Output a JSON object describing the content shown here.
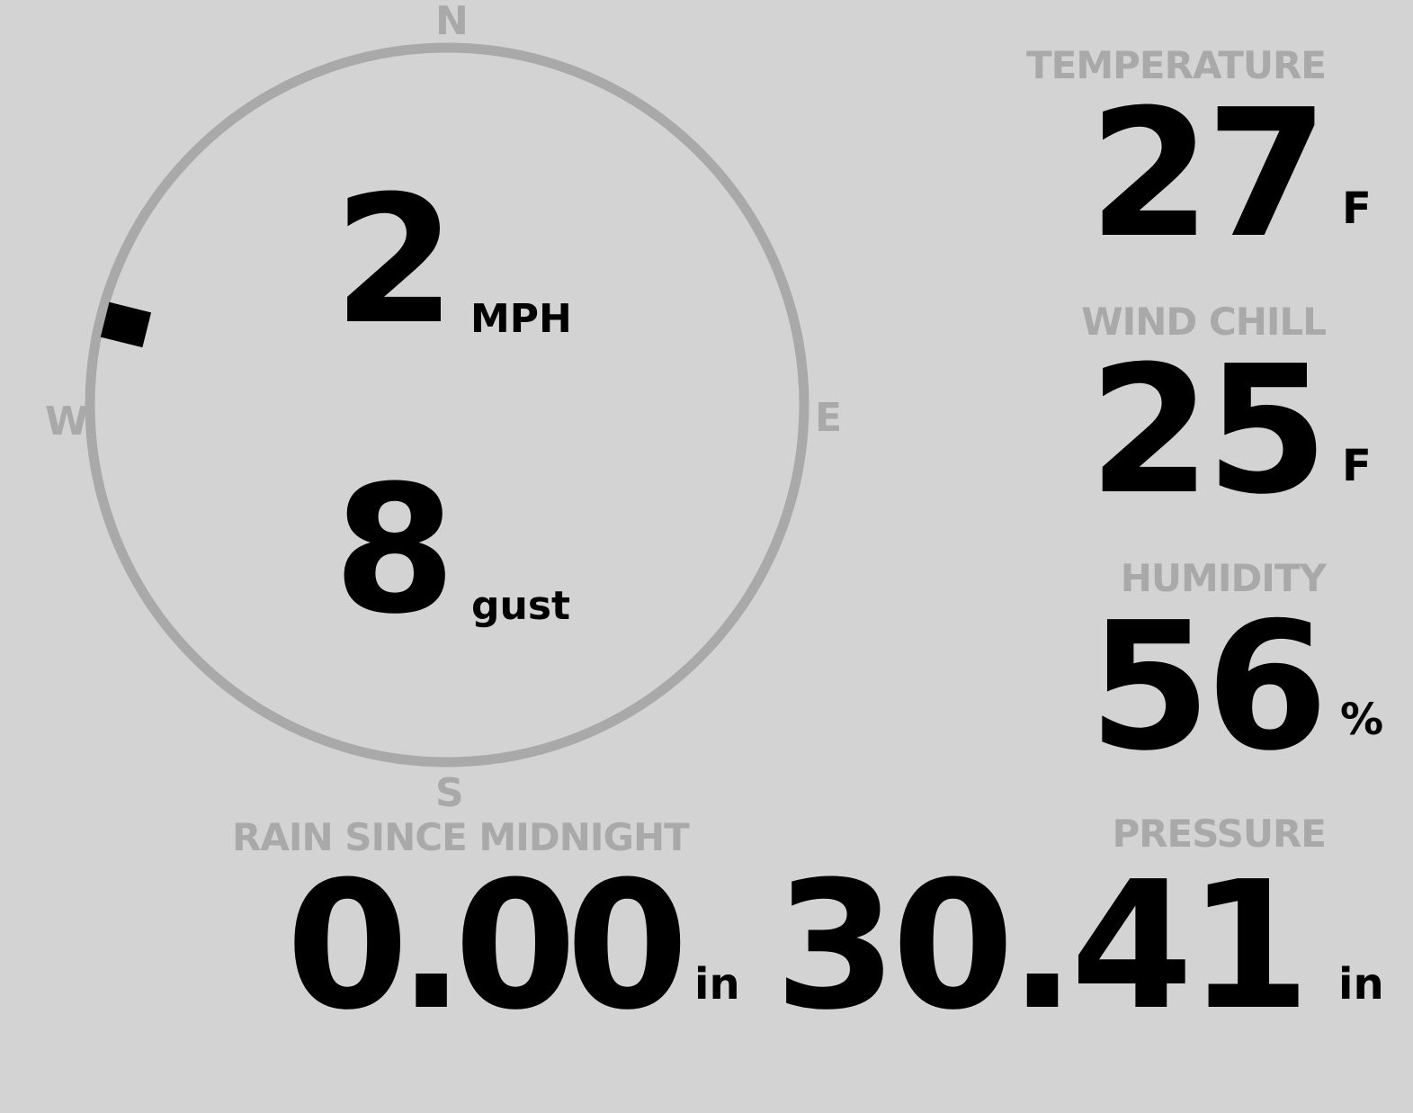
{
  "wind": {
    "speed": "2",
    "speed_unit": "MPH",
    "gust": "8",
    "gust_label": "gust",
    "direction_degrees": 284,
    "compass": {
      "n": "N",
      "e": "E",
      "s": "S",
      "w": "W"
    }
  },
  "temperature": {
    "label": "TEMPERATURE",
    "value": "27",
    "unit": "F"
  },
  "wind_chill": {
    "label": "WIND CHILL",
    "value": "25",
    "unit": "F"
  },
  "humidity": {
    "label": "HUMIDITY",
    "value": "56",
    "unit": "%"
  },
  "rain": {
    "label": "RAIN SINCE MIDNIGHT",
    "value": "0.00",
    "unit": "in"
  },
  "pressure": {
    "label": "PRESSURE",
    "value": "30.41",
    "unit": "in"
  },
  "colors": {
    "background": "#d3d3d3",
    "muted": "#a9a9a9",
    "text": "#000000"
  }
}
